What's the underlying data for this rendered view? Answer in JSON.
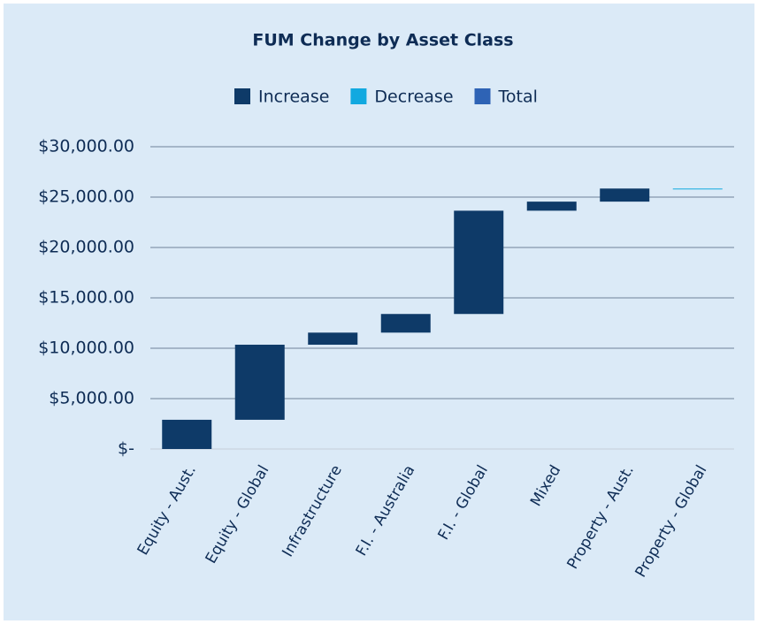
{
  "chart_data": {
    "type": "waterfall",
    "title": "FUM Change by Asset Class",
    "categories": [
      "Equity - Aust.",
      "Equity - Global",
      "Infrastructure",
      "F.I. - Australia",
      "F.I. - Global",
      "Mixed",
      "Property - Aust.",
      "Property - Global"
    ],
    "values": [
      2900,
      7450,
      1200,
      1850,
      10250,
      900,
      1300,
      -20
    ],
    "legend": [
      {
        "name": "Increase",
        "color": "#0e3a68"
      },
      {
        "name": "Decrease",
        "color": "#12a9e0"
      },
      {
        "name": "Total",
        "color": "#2e63b5"
      }
    ],
    "ylim": [
      0,
      30000
    ],
    "yticks": [
      {
        "value": 0,
        "label": "$-"
      },
      {
        "value": 5000,
        "label": "$5,000.00"
      },
      {
        "value": 10000,
        "label": "$10,000.00"
      },
      {
        "value": 15000,
        "label": "$15,000.00"
      },
      {
        "value": 20000,
        "label": "$20,000.00"
      },
      {
        "value": 25000,
        "label": "$25,000.00"
      },
      {
        "value": 30000,
        "label": "$30,000.00"
      }
    ],
    "grid": true
  }
}
